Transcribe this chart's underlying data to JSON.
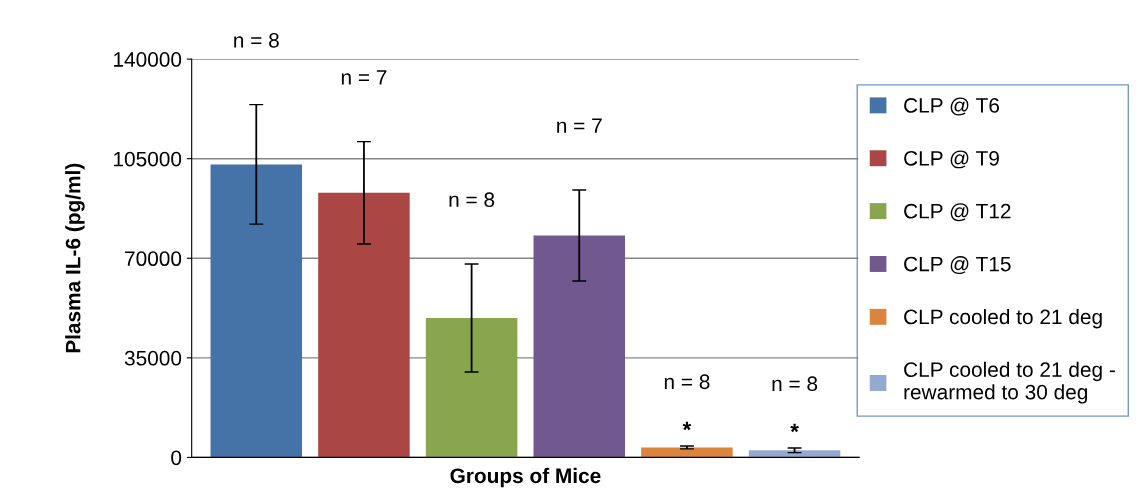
{
  "chart_data": {
    "type": "bar",
    "xlabel": "Groups of Mice",
    "ylabel": "Plasma IL-6 (pg/ml)",
    "categories": [
      null,
      null,
      null,
      null,
      null,
      null
    ],
    "series": [
      {
        "name": "CLP @ T6",
        "color": "#4572a7",
        "values": [
          103000,
          null,
          null,
          null,
          null,
          null
        ],
        "errors": [
          21000,
          null,
          null,
          null,
          null,
          null
        ]
      },
      {
        "name": "CLP @ T9",
        "color": "#aa4643",
        "values": [
          null,
          93000,
          null,
          null,
          null,
          null
        ],
        "errors": [
          null,
          18000,
          null,
          null,
          null,
          null
        ]
      },
      {
        "name": "CLP @ T12",
        "color": "#89a54e",
        "values": [
          null,
          null,
          49000,
          null,
          null,
          null
        ],
        "errors": [
          null,
          null,
          19000,
          null,
          null,
          null
        ]
      },
      {
        "name": "CLP @ T15",
        "color": "#71588f",
        "values": [
          null,
          null,
          null,
          78000,
          null,
          null
        ],
        "errors": [
          null,
          null,
          null,
          16000,
          null,
          null
        ]
      },
      {
        "name": "CLP cooled to 21 deg",
        "color": "#db843d",
        "values": [
          null,
          null,
          null,
          null,
          3500,
          null
        ],
        "errors": [
          null,
          null,
          null,
          null,
          500,
          null
        ],
        "value_labels": [
          null,
          null,
          null,
          null,
          "*",
          null
        ]
      },
      {
        "name": "CLP cooled to 21 deg - rewarmed to 30 deg",
        "color": "#93a9cf",
        "values": [
          null,
          null,
          null,
          null,
          null,
          2500
        ],
        "errors": [
          null,
          null,
          null,
          null,
          null,
          800
        ],
        "value_labels": [
          null,
          null,
          null,
          null,
          null,
          "*"
        ]
      }
    ],
    "annotations": [
      "n = 8",
      "n = 7",
      "n = 8",
      "n = 7",
      "n = 8",
      "n = 8"
    ],
    "ylim": [
      0,
      140000
    ],
    "yticks": [
      0,
      35000,
      70000,
      105000,
      140000
    ],
    "grid": "y",
    "legend": "right"
  }
}
